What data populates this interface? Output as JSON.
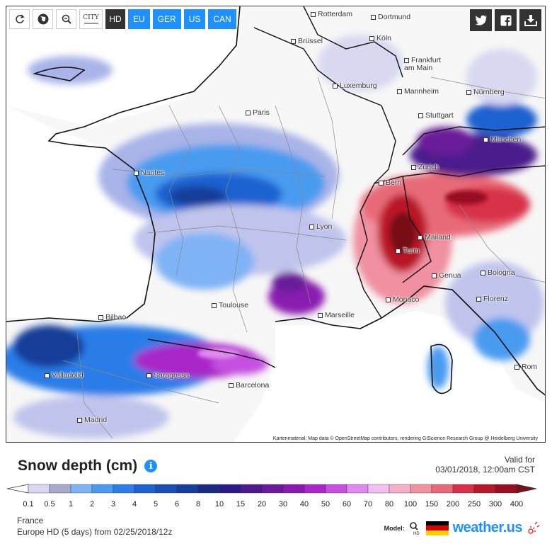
{
  "toolbar": {
    "reload_icon": "reload-icon",
    "globe_icon": "globe-icon",
    "zoom_icon": "zoom-out-icon",
    "city_label": "CITY",
    "hd_label": "HD",
    "regions": [
      "EU",
      "GER",
      "US",
      "CAN"
    ]
  },
  "social": [
    "twitter-icon",
    "facebook-icon",
    "download-icon"
  ],
  "cities": [
    {
      "name": "Rotterdam"
    },
    {
      "name": "Dortmund"
    },
    {
      "name": "Brüssel"
    },
    {
      "name": "Köln"
    },
    {
      "name": "Frankfurt am Main"
    },
    {
      "name": "Luxemburg"
    },
    {
      "name": "Mannheim"
    },
    {
      "name": "Nürnberg"
    },
    {
      "name": "Paris"
    },
    {
      "name": "Stuttgart"
    },
    {
      "name": "München"
    },
    {
      "name": "Nantes"
    },
    {
      "name": "Zürich"
    },
    {
      "name": "Bern"
    },
    {
      "name": "Lyon"
    },
    {
      "name": "Mailand"
    },
    {
      "name": "Turin"
    },
    {
      "name": "Genua"
    },
    {
      "name": "Bologna"
    },
    {
      "name": "Florenz"
    },
    {
      "name": "Toulouse"
    },
    {
      "name": "Marseille"
    },
    {
      "name": "Monaco"
    },
    {
      "name": "Bilbao"
    },
    {
      "name": "Valladolid"
    },
    {
      "name": "Saragossa"
    },
    {
      "name": "Barcelona"
    },
    {
      "name": "Madrid"
    },
    {
      "name": "Rom"
    }
  ],
  "credit": "Kartenmaterial: Map data © OpenStreetMap contributors, rendering GIScience Research Group @ Heidelberg University",
  "title": "Snow depth (cm)",
  "valid_label": "Valid for",
  "valid_time": "03/01/2018, 12:00am CST",
  "legend": {
    "labels": [
      "0.1",
      "0.5",
      "1",
      "2",
      "3",
      "4",
      "5",
      "6",
      "8",
      "10",
      "15",
      "20",
      "30",
      "40",
      "50",
      "60",
      "70",
      "80",
      "100",
      "150",
      "200",
      "250",
      "300",
      "400"
    ],
    "colors": [
      "#d8d8f0",
      "#a9a9cc",
      "#7fb3f5",
      "#4a9bf0",
      "#2c7de8",
      "#1e62d0",
      "#1a4fb5",
      "#163d98",
      "#1a2a80",
      "#2a1a88",
      "#4b1a8c",
      "#6a1a9a",
      "#8a1ab0",
      "#a928c8",
      "#c64fe0",
      "#e08af0",
      "#f0c0f0",
      "#f4b0c8",
      "#f090a0",
      "#e86a78",
      "#d83048",
      "#b81828",
      "#981020",
      "#781018"
    ]
  },
  "meta": {
    "region": "France",
    "model_run": "Europe HD  (5 days)  from 02/25/2018/12z"
  },
  "brand": {
    "model_label": "Model:",
    "model_icon": "magnifier-hd-icon",
    "name": "weather.us",
    "flag_colors": [
      "#000000",
      "#dd0000",
      "#ffce00"
    ]
  },
  "colors": {
    "accent": "#1e90ff",
    "dark": "#333333"
  }
}
